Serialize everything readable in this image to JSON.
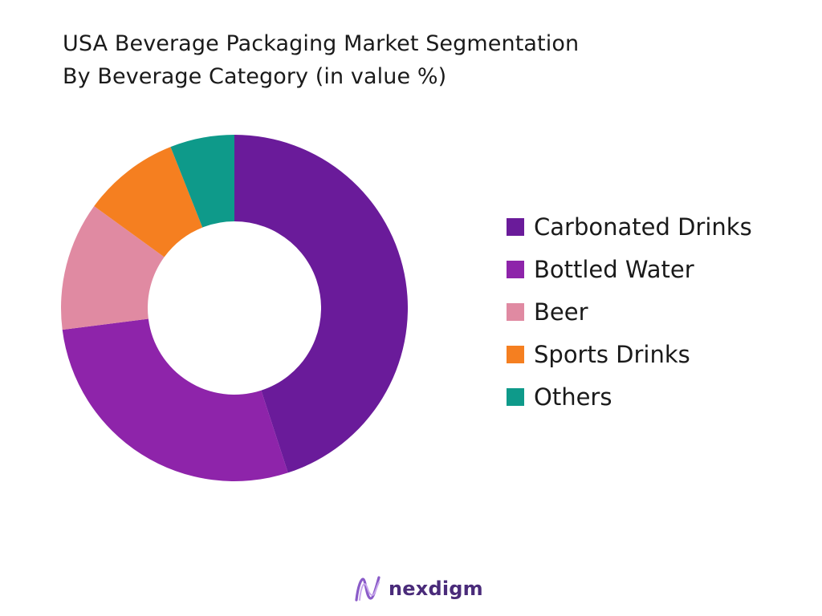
{
  "title_line1": "USA Beverage Packaging Market Segmentation",
  "title_line2": "By Beverage Category (in value %)",
  "chart_data": {
    "type": "pie",
    "variant": "donut",
    "categories": [
      "Carbonated Drinks",
      "Bottled Water",
      "Beer",
      "Sports Drinks",
      "Others"
    ],
    "values": [
      45,
      28,
      12,
      9,
      6
    ],
    "unit": "%",
    "colors": [
      "#6a1b9a",
      "#8e24aa",
      "#e08aa2",
      "#f57f20",
      "#0e9a8a"
    ],
    "legend_position": "right"
  },
  "brand": {
    "name": "nexdigm",
    "color": "#4a2b7a"
  }
}
